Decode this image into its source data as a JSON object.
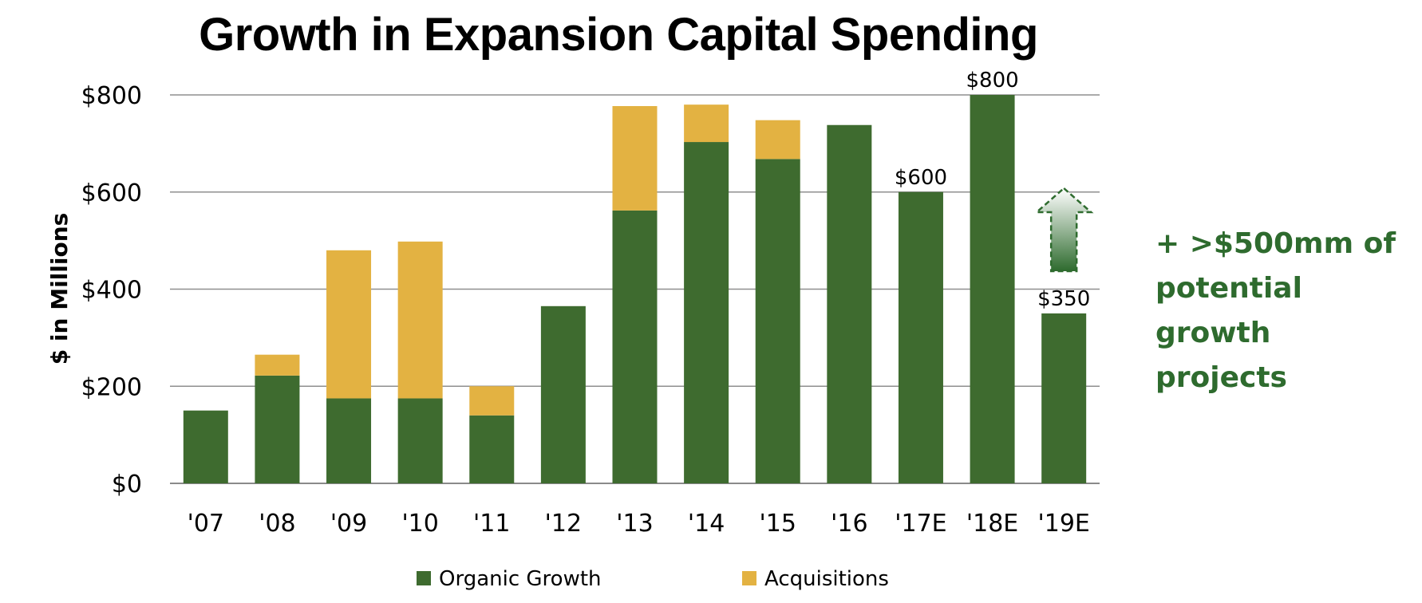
{
  "chart_data": {
    "type": "bar",
    "stacked": true,
    "title": "Growth in Expansion Capital Spending",
    "ylabel": "$ in Millions",
    "xlabel": "",
    "ylim": [
      0,
      800
    ],
    "yticks": [
      "$0",
      "$200",
      "$400",
      "$600",
      "$800"
    ],
    "yticks_values": [
      0,
      200,
      400,
      600,
      800
    ],
    "grid": true,
    "legend_position": "bottom",
    "categories": [
      "'07",
      "'08",
      "'09",
      "'10",
      "'11",
      "'12",
      "'13",
      "'14",
      "'15",
      "'16",
      "'17E",
      "'18E",
      "'19E"
    ],
    "series": [
      {
        "name": "Organic Growth",
        "color": "#3e6b2f",
        "values": [
          150,
          222,
          175,
          175,
          140,
          365,
          562,
          703,
          668,
          738,
          600,
          800,
          350
        ]
      },
      {
        "name": "Acquisitions",
        "color": "#e3b242",
        "values": [
          0,
          43,
          305,
          323,
          60,
          0,
          215,
          77,
          80,
          0,
          0,
          0,
          0
        ]
      }
    ],
    "data_labels": [
      {
        "category": "'17E",
        "text": "$600"
      },
      {
        "category": "'18E",
        "text": "$800"
      },
      {
        "category": "'19E",
        "text": "$350"
      }
    ],
    "annotation": {
      "lines": [
        "+ >$500mm of",
        "potential growth",
        "projects"
      ],
      "color": "#2e6b2e",
      "arrow_category": "'19E"
    }
  }
}
